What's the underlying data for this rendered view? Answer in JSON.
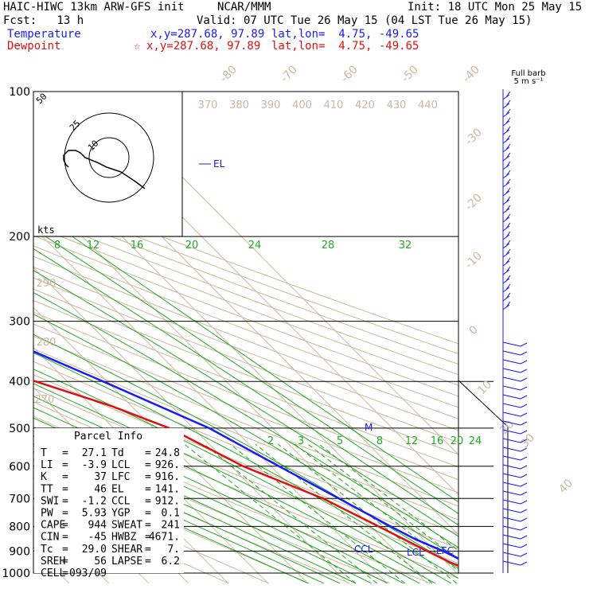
{
  "header": {
    "model": "HAIC-HIWC 13km ARW-GFS init",
    "org": "NCAR/MMM",
    "init": "Init: 18 UTC Mon 25 May 15",
    "fcst": "Fcst:   13 h",
    "valid": "Valid: 07 UTC Tue 26 May 15 (04 LST Tue 26 May 15)"
  },
  "legend": {
    "temperature": {
      "label": "Temperature",
      "xy": "x,y=287.68, 97.89",
      "latlon": "lat,lon=  4.75, -49.65",
      "color": "#1a1aff"
    },
    "dewpoint": {
      "label": "Dewpoint",
      "marker": "☆",
      "xy": "x,y=287.68, 97.89",
      "latlon": "lat,lon=  4.75, -49.65",
      "color": "#e01010"
    }
  },
  "barb_label": {
    "line1": "Full barb",
    "line2": "5 m s⁻¹"
  },
  "hodograph": {
    "ring_labels": [
      "50",
      "25",
      "10"
    ],
    "units": "kts"
  },
  "parcel_info": {
    "title": "Parcel Info",
    "rows": [
      {
        "l": "T",
        "lv": "27.1",
        "r": "Td",
        "rv": "24.8"
      },
      {
        "l": "LI",
        "lv": "-3.9",
        "r": "LCL",
        "rv": "926."
      },
      {
        "l": "K",
        "lv": "37",
        "r": "LFC",
        "rv": "916."
      },
      {
        "l": "TT",
        "lv": "46",
        "r": "EL",
        "rv": "141."
      },
      {
        "l": "SWI",
        "lv": "-1.2",
        "r": "CCL",
        "rv": "912."
      },
      {
        "l": "PW",
        "lv": "5.93",
        "r": "YGP",
        "rv": "0.1"
      },
      {
        "l": "CAPE",
        "lv": "944",
        "r": "SWEAT",
        "rv": "241"
      },
      {
        "l": "CIN",
        "lv": "-45",
        "r": "HWBZ",
        "rv": "4671."
      },
      {
        "l": "Tc",
        "lv": "29.0",
        "r": "SHEAR",
        "rv": "7."
      },
      {
        "l": "SREH",
        "lv": "56",
        "r": "LAPSE",
        "rv": "6.2"
      },
      {
        "l": "CELL",
        "lv": "093/09",
        "r": "",
        "rv": ""
      }
    ]
  },
  "chart_data": {
    "type": "line",
    "y_axis": "pressure (hPa)",
    "pressure_levels": [
      100,
      200,
      300,
      400,
      500,
      600,
      700,
      800,
      900,
      1000
    ],
    "isotherm_labels": [
      -80,
      -70,
      -60,
      -50,
      -40,
      -30,
      -20,
      -10,
      0,
      10,
      20,
      30,
      40
    ],
    "theta_labels_top": [
      370,
      380,
      390,
      400,
      410,
      420,
      430,
      440
    ],
    "theta_labels_left": [
      290,
      280,
      270
    ],
    "mixing_ratio_labels_upper": [
      8,
      12,
      16,
      20,
      24,
      28,
      32
    ],
    "mixing_ratio_labels_lower": [
      2,
      3,
      5,
      8,
      12,
      16,
      20,
      24
    ],
    "levels_marked": [
      "EL",
      "M",
      "CCL",
      "LCL",
      "LFC"
    ],
    "series": [
      {
        "name": "Temperature",
        "color": "#1a1aff",
        "points": [
          [
            100,
            -79
          ],
          [
            120,
            -79
          ],
          [
            140,
            -77
          ],
          [
            160,
            -73
          ],
          [
            200,
            -64
          ],
          [
            250,
            -53
          ],
          [
            300,
            -41
          ],
          [
            400,
            -21
          ],
          [
            500,
            -6
          ],
          [
            600,
            2
          ],
          [
            700,
            9
          ],
          [
            800,
            15
          ],
          [
            850,
            18
          ],
          [
            900,
            22
          ],
          [
            950,
            25
          ],
          [
            1000,
            27.1
          ]
        ]
      },
      {
        "name": "Dewpoint",
        "color": "#e01010",
        "points": [
          [
            100,
            -85
          ],
          [
            130,
            -85
          ],
          [
            160,
            -85
          ],
          [
            200,
            -84
          ],
          [
            250,
            -76
          ],
          [
            300,
            -65
          ],
          [
            350,
            -52
          ],
          [
            400,
            -38
          ],
          [
            450,
            -25
          ],
          [
            500,
            -16
          ],
          [
            600,
            -7
          ],
          [
            700,
            5
          ],
          [
            800,
            12
          ],
          [
            900,
            18
          ],
          [
            950,
            21
          ],
          [
            1000,
            24.8
          ]
        ]
      }
    ],
    "hodograph_points": [
      [
        -2,
        4
      ],
      [
        -3,
        3
      ],
      [
        -4,
        1
      ],
      [
        -4,
        -1
      ],
      [
        -2,
        -3
      ],
      [
        1,
        -3
      ],
      [
        3,
        -2
      ],
      [
        5,
        0
      ],
      [
        10,
        2
      ],
      [
        14,
        4
      ],
      [
        20,
        6
      ],
      [
        26,
        10
      ],
      [
        30,
        13
      ]
    ]
  }
}
